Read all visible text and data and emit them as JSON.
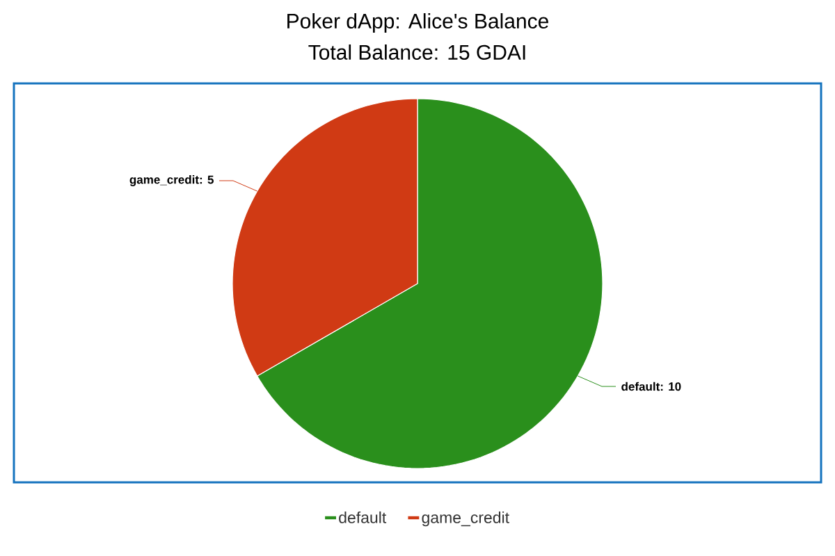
{
  "chart_data": {
    "type": "pie",
    "title": "Poker dApp: Alice's Balance",
    "subtitle": "Total Balance: 15 GDAI",
    "categories": [
      "default",
      "game_credit"
    ],
    "values": [
      10,
      5
    ],
    "value_labels": [
      "default: 10",
      "game_credit: 5"
    ],
    "colors": [
      "#2a8f1c",
      "#d03a14"
    ],
    "legend": "bottom"
  }
}
